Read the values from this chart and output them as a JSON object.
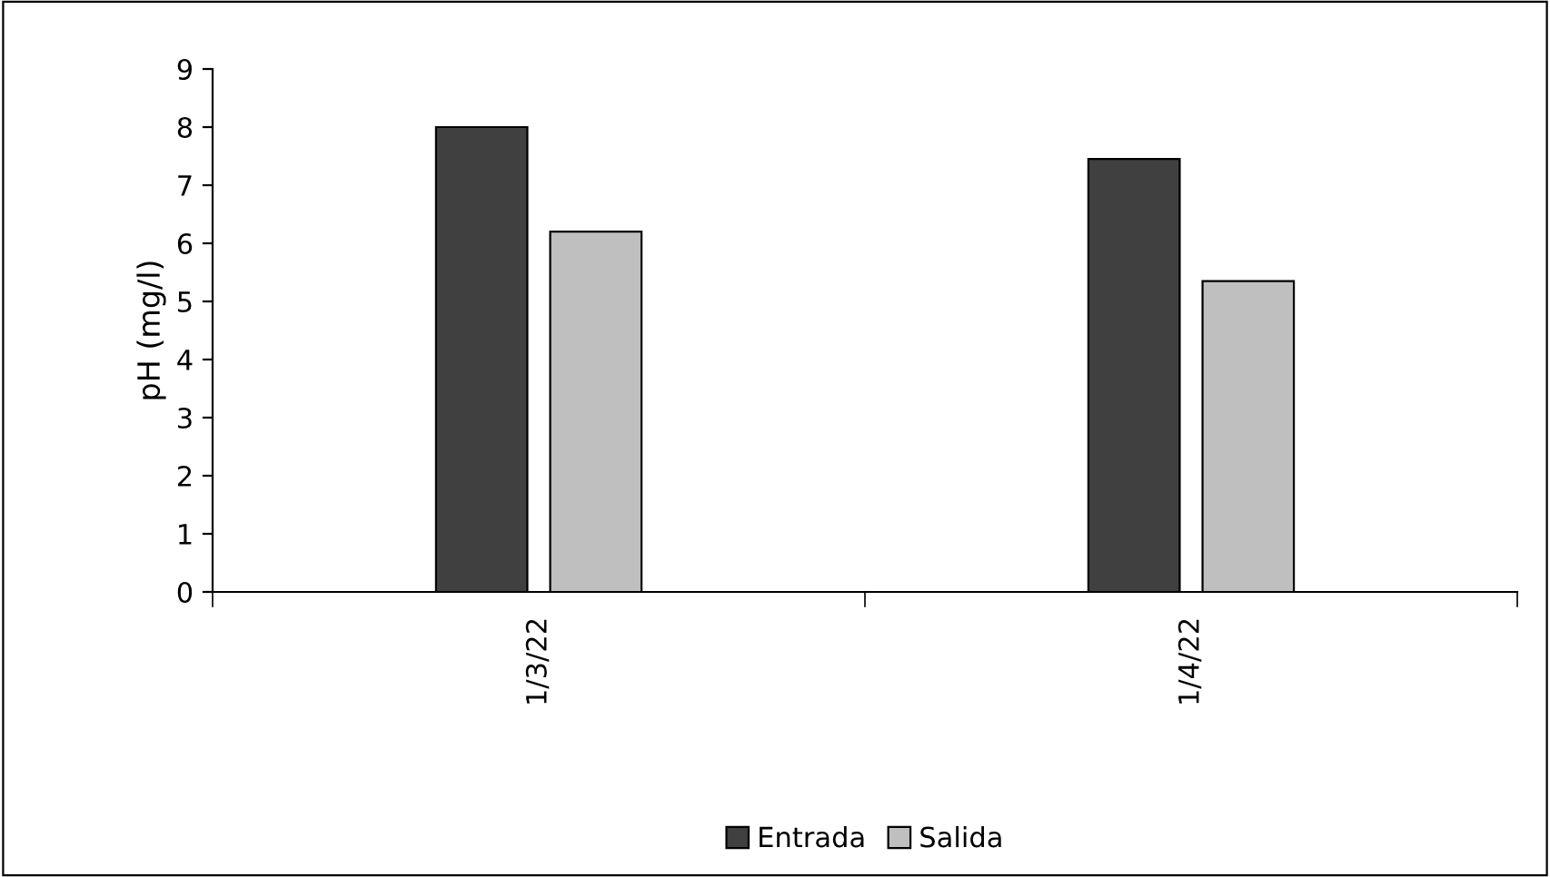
{
  "chart_data": {
    "type": "bar",
    "ylabel": "pH (mg/l)",
    "categories": [
      "1/3/22",
      "1/4/22"
    ],
    "series": [
      {
        "name": "Entrada",
        "color": "#404040",
        "values": [
          8.0,
          7.45
        ]
      },
      {
        "name": "Salida",
        "color": "#bfbfbf",
        "values": [
          6.2,
          5.35
        ]
      }
    ],
    "ylim": [
      0,
      9
    ],
    "yticks": [
      0,
      1,
      2,
      3,
      4,
      5,
      6,
      7,
      8,
      9
    ],
    "grid": false,
    "legend": "bottom"
  }
}
